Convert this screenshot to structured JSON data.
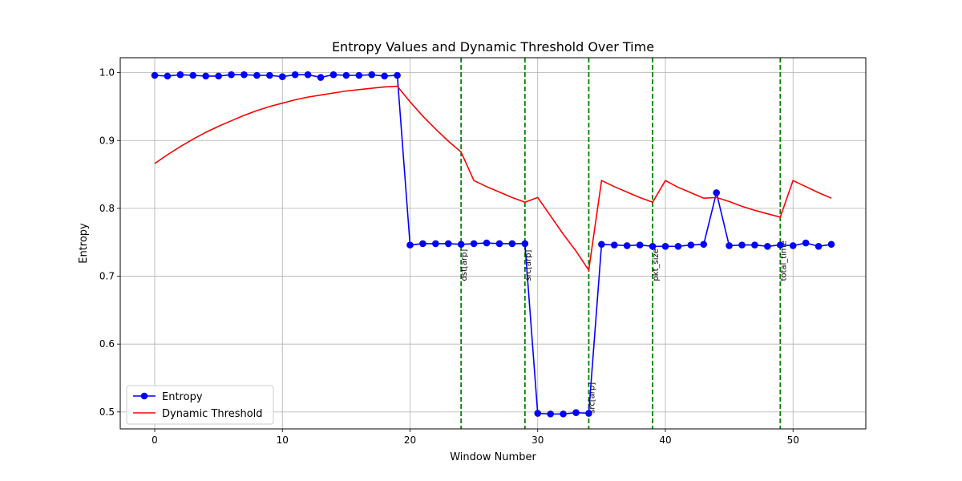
{
  "chart_data": {
    "type": "line",
    "title": "Entropy Values and Dynamic Threshold Over Time",
    "xlabel": "Window Number",
    "ylabel": "Entropy",
    "xlim": [
      -2.7,
      55.7
    ],
    "ylim": [
      0.475,
      1.022
    ],
    "xticks": [
      0,
      10,
      20,
      30,
      40,
      50
    ],
    "yticks": [
      0.5,
      0.6,
      0.7,
      0.8,
      0.9,
      1.0
    ],
    "xtick_labels": [
      "0",
      "10",
      "20",
      "30",
      "40",
      "50"
    ],
    "ytick_labels": [
      "0.5",
      "0.6",
      "0.7",
      "0.8",
      "0.9",
      "1.0"
    ],
    "grid": true,
    "legend_position": "lower-left",
    "series": [
      {
        "name": "Entropy",
        "color": "#0000ff",
        "marker": "circle",
        "x": [
          0,
          1,
          2,
          3,
          4,
          5,
          6,
          7,
          8,
          9,
          10,
          11,
          12,
          13,
          14,
          15,
          16,
          17,
          18,
          19,
          20,
          21,
          22,
          23,
          24,
          25,
          26,
          27,
          28,
          29,
          30,
          31,
          32,
          33,
          34,
          35,
          36,
          37,
          38,
          39,
          40,
          41,
          42,
          43,
          44,
          45,
          46,
          47,
          48,
          49,
          50,
          51,
          52,
          53
        ],
        "y": [
          0.996,
          0.995,
          0.997,
          0.996,
          0.995,
          0.995,
          0.997,
          0.997,
          0.996,
          0.996,
          0.994,
          0.997,
          0.997,
          0.993,
          0.997,
          0.996,
          0.996,
          0.997,
          0.995,
          0.996,
          0.746,
          0.748,
          0.748,
          0.748,
          0.747,
          0.748,
          0.749,
          0.748,
          0.748,
          0.748,
          0.498,
          0.497,
          0.497,
          0.499,
          0.498,
          0.747,
          0.746,
          0.745,
          0.746,
          0.744,
          0.744,
          0.744,
          0.746,
          0.747,
          0.823,
          0.745,
          0.746,
          0.746,
          0.744,
          0.746,
          0.745,
          0.749,
          0.744,
          0.747
        ]
      },
      {
        "name": "Dynamic Threshold",
        "color": "#ff0000",
        "marker": "none",
        "x": [
          0,
          1,
          2,
          3,
          4,
          5,
          6,
          7,
          8,
          9,
          10,
          11,
          12,
          13,
          14,
          15,
          16,
          17,
          18,
          19,
          20,
          21,
          22,
          23,
          24,
          25,
          26,
          27,
          28,
          29,
          30,
          31,
          32,
          33,
          34,
          35,
          36,
          37,
          38,
          39,
          40,
          41,
          42,
          43,
          44,
          45,
          46,
          47,
          48,
          49,
          50,
          51,
          52,
          53
        ],
        "y": [
          0.866,
          0.879,
          0.891,
          0.902,
          0.912,
          0.921,
          0.929,
          0.937,
          0.944,
          0.95,
          0.955,
          0.96,
          0.964,
          0.967,
          0.97,
          0.973,
          0.975,
          0.977,
          0.979,
          0.98,
          0.957,
          0.936,
          0.917,
          0.899,
          0.883,
          0.841,
          0.832,
          0.824,
          0.816,
          0.809,
          0.816,
          0.789,
          0.762,
          0.737,
          0.709,
          0.841,
          0.832,
          0.824,
          0.816,
          0.809,
          0.841,
          0.831,
          0.823,
          0.815,
          0.816,
          0.81,
          0.803,
          0.797,
          0.792,
          0.787,
          0.841,
          0.832,
          0.823,
          0.815
        ]
      }
    ],
    "vlines": {
      "color": "#008000",
      "style": "dashed",
      "items": [
        {
          "x": 24,
          "label": "dst[arp]"
        },
        {
          "x": 29,
          "label": "src[arp]"
        },
        {
          "x": 34,
          "label": "src[arp]"
        },
        {
          "x": 39,
          "label": "pkt_size"
        },
        {
          "x": 49,
          "label": "total_time"
        }
      ]
    }
  }
}
